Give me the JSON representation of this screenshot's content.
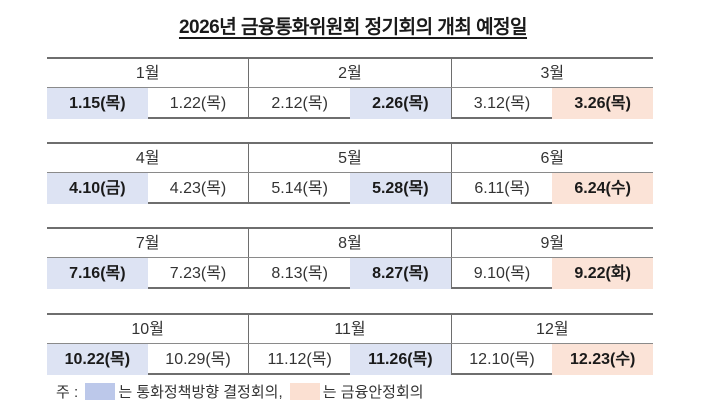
{
  "title": "2026년 금융통화위원회 정기회의 개최 예정일",
  "colors": {
    "policy_meeting": "#dde3f3",
    "financial_stability_meeting": "#fbe3d7",
    "legend_blue": "#bcc8ea",
    "legend_peach": "#fbe0d2"
  },
  "blocks": [
    {
      "months": [
        {
          "label": "1월",
          "dates": [
            {
              "text": "1.15(목)",
              "type": "policy"
            },
            {
              "text": "1.22(목)",
              "type": "normal"
            }
          ]
        },
        {
          "label": "2월",
          "dates": [
            {
              "text": "2.12(목)",
              "type": "normal"
            },
            {
              "text": "2.26(목)",
              "type": "policy"
            }
          ]
        },
        {
          "label": "3월",
          "dates": [
            {
              "text": "3.12(목)",
              "type": "normal"
            },
            {
              "text": "3.26(목)",
              "type": "stability"
            }
          ]
        }
      ]
    },
    {
      "months": [
        {
          "label": "4월",
          "dates": [
            {
              "text": "4.10(금)",
              "type": "policy"
            },
            {
              "text": "4.23(목)",
              "type": "normal"
            }
          ]
        },
        {
          "label": "5월",
          "dates": [
            {
              "text": "5.14(목)",
              "type": "normal"
            },
            {
              "text": "5.28(목)",
              "type": "policy"
            }
          ]
        },
        {
          "label": "6월",
          "dates": [
            {
              "text": "6.11(목)",
              "type": "normal"
            },
            {
              "text": "6.24(수)",
              "type": "stability"
            }
          ]
        }
      ]
    },
    {
      "months": [
        {
          "label": "7월",
          "dates": [
            {
              "text": "7.16(목)",
              "type": "policy"
            },
            {
              "text": "7.23(목)",
              "type": "normal"
            }
          ]
        },
        {
          "label": "8월",
          "dates": [
            {
              "text": "8.13(목)",
              "type": "normal"
            },
            {
              "text": "8.27(목)",
              "type": "policy"
            }
          ]
        },
        {
          "label": "9월",
          "dates": [
            {
              "text": "9.10(목)",
              "type": "normal"
            },
            {
              "text": "9.22(화)",
              "type": "stability"
            }
          ]
        }
      ]
    },
    {
      "months": [
        {
          "label": "10월",
          "dates": [
            {
              "text": "10.22(목)",
              "type": "policy"
            },
            {
              "text": "10.29(목)",
              "type": "normal"
            }
          ]
        },
        {
          "label": "11월",
          "dates": [
            {
              "text": "11.12(목)",
              "type": "normal"
            },
            {
              "text": "11.26(목)",
              "type": "policy"
            }
          ]
        },
        {
          "label": "12월",
          "dates": [
            {
              "text": "12.10(목)",
              "type": "normal"
            },
            {
              "text": "12.23(수)",
              "type": "stability"
            }
          ]
        }
      ]
    }
  ],
  "note": {
    "prefix": "주 : ",
    "policy_label": "는 통화정책방향 결정회의, ",
    "stability_label": "는 금융안정회의"
  }
}
